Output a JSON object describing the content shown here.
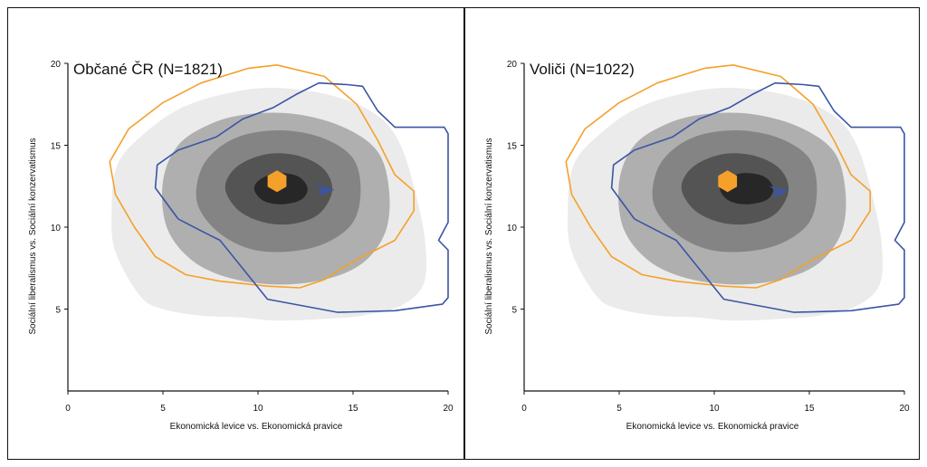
{
  "colors": {
    "orange": "#f5a02a",
    "blue": "#3a55a4",
    "band1": "#ebebeb",
    "band2": "#a9a9a9",
    "band3": "#7f7f7f",
    "band4": "#4f4f4f",
    "band5": "#222222"
  },
  "chart_data": [
    {
      "type": "contour",
      "title": "Občané ČR  (N=1821)",
      "xlabel": "Ekonomická levice vs. Ekonomická pravice",
      "ylabel": "Sociální liberalismus vs. Sociální konzervatismus",
      "xlim": [
        0,
        20
      ],
      "ylim": [
        0,
        20
      ],
      "xticks": [
        "0",
        "5",
        "10",
        "15",
        "20"
      ],
      "yticks": [
        "5",
        "10",
        "15",
        "20"
      ],
      "density_levels": [
        {
          "level": 1,
          "points": [
            [
              3.8,
              5.8
            ],
            [
              5,
              5
            ],
            [
              7,
              4.6
            ],
            [
              9,
              4.5
            ],
            [
              11,
              4.3
            ],
            [
              13.5,
              4.4
            ],
            [
              15.5,
              4.6
            ],
            [
              17.5,
              5.2
            ],
            [
              18.7,
              6.5
            ],
            [
              18.8,
              9
            ],
            [
              18.3,
              12
            ],
            [
              17.5,
              15
            ],
            [
              16.3,
              16.8
            ],
            [
              14,
              18
            ],
            [
              11,
              18.5
            ],
            [
              8.5,
              18.2
            ],
            [
              6,
              17.3
            ],
            [
              4,
              15.7
            ],
            [
              2.6,
              13.8
            ],
            [
              2.3,
              11
            ],
            [
              2.5,
              8.5
            ]
          ]
        },
        {
          "level": 2,
          "points": [
            [
              5.2,
              10
            ],
            [
              6.5,
              8
            ],
            [
              8.5,
              6.9
            ],
            [
              11,
              6.5
            ],
            [
              13.5,
              6.8
            ],
            [
              15.5,
              7.8
            ],
            [
              16.7,
              9.7
            ],
            [
              16.9,
              12.2
            ],
            [
              16.3,
              14.6
            ],
            [
              14.5,
              16.1
            ],
            [
              12,
              16.9
            ],
            [
              9.5,
              16.9
            ],
            [
              7.5,
              16.3
            ],
            [
              5.8,
              15
            ],
            [
              5,
              12.8
            ]
          ]
        },
        {
          "level": 3,
          "points": [
            [
              6.8,
              11.5
            ],
            [
              7.8,
              9.8
            ],
            [
              9.5,
              8.7
            ],
            [
              11.5,
              8.5
            ],
            [
              13.5,
              9
            ],
            [
              15,
              10.3
            ],
            [
              15.4,
              12.3
            ],
            [
              15,
              14.2
            ],
            [
              13.5,
              15.4
            ],
            [
              11.5,
              15.9
            ],
            [
              9.5,
              15.7
            ],
            [
              8,
              14.9
            ],
            [
              7,
              13.5
            ]
          ]
        },
        {
          "level": 4,
          "points": [
            [
              8.3,
              12.2
            ],
            [
              9,
              11
            ],
            [
              10.3,
              10.3
            ],
            [
              11.8,
              10.2
            ],
            [
              13.2,
              10.8
            ],
            [
              13.9,
              12.2
            ],
            [
              13.5,
              13.5
            ],
            [
              12.3,
              14.3
            ],
            [
              10.7,
              14.5
            ],
            [
              9.3,
              14
            ],
            [
              8.5,
              13.2
            ]
          ]
        },
        {
          "level": 5,
          "points": [
            [
              9.8,
              12.3
            ],
            [
              10.3,
              11.6
            ],
            [
              11.3,
              11.4
            ],
            [
              12.3,
              11.7
            ],
            [
              12.6,
              12.4
            ],
            [
              12.1,
              13.1
            ],
            [
              11,
              13.3
            ],
            [
              10.1,
              12.9
            ]
          ]
        }
      ],
      "series": [
        {
          "name": "orange contour",
          "color": "#f5a02a",
          "closed": true,
          "points": [
            [
              2.2,
              14
            ],
            [
              3.2,
              16
            ],
            [
              5,
              17.6
            ],
            [
              7,
              18.8
            ],
            [
              9.5,
              19.7
            ],
            [
              11,
              19.9
            ],
            [
              13.5,
              19.2
            ],
            [
              15.2,
              17.5
            ],
            [
              16.3,
              15.3
            ],
            [
              17.2,
              13.2
            ],
            [
              18.2,
              12.2
            ],
            [
              18.2,
              11
            ],
            [
              17.2,
              9.2
            ],
            [
              15.5,
              8.2
            ],
            [
              14.4,
              7.5
            ],
            [
              13.5,
              6.8
            ],
            [
              12.2,
              6.3
            ],
            [
              10.5,
              6.4
            ],
            [
              8,
              6.7
            ],
            [
              6.2,
              7.1
            ],
            [
              4.6,
              8.2
            ],
            [
              3.5,
              10
            ],
            [
              2.5,
              12
            ]
          ]
        },
        {
          "name": "blue contour",
          "color": "#3a55a4",
          "closed": false,
          "points": [
            [
              5.8,
              10.5
            ],
            [
              4.6,
              12.4
            ],
            [
              4.7,
              13.8
            ],
            [
              5.8,
              14.7
            ],
            [
              7.8,
              15.5
            ],
            [
              9.2,
              16.6
            ],
            [
              10.8,
              17.3
            ],
            [
              12,
              18.1
            ],
            [
              13.2,
              18.8
            ],
            [
              14.7,
              18.7
            ],
            [
              15.5,
              18.6
            ],
            [
              16.3,
              17.1
            ],
            [
              17.2,
              16.1
            ],
            [
              19.8,
              16.1
            ],
            [
              20,
              15.7
            ],
            [
              20,
              10.3
            ],
            [
              19.5,
              9.2
            ],
            [
              20,
              8.6
            ],
            [
              20,
              5.7
            ],
            [
              19.7,
              5.3
            ],
            [
              17.2,
              4.9
            ],
            [
              14.2,
              4.8
            ],
            [
              10.5,
              5.6
            ],
            [
              8,
              9.2
            ],
            [
              7.3,
              9.6
            ],
            [
              5.8,
              10.5
            ]
          ]
        }
      ],
      "markers": [
        {
          "name": "orange hexagon",
          "shape": "hexagon",
          "color": "#f5a02a",
          "x": 11.0,
          "y": 12.8
        },
        {
          "name": "blue arrowhead",
          "shape": "arrowhead",
          "color": "#3a55a4",
          "x": 13.5,
          "y": 12.3
        }
      ]
    },
    {
      "type": "contour",
      "title": "Voliči  (N=1022)",
      "xlabel": "Ekonomická levice vs. Ekonomická pravice",
      "ylabel": "Sociální liberalismus vs. Sociální konzervatismus",
      "xlim": [
        0,
        20
      ],
      "ylim": [
        0,
        20
      ],
      "xticks": [
        "0",
        "5",
        "10",
        "15",
        "20"
      ],
      "yticks": [
        "5",
        "10",
        "15",
        "20"
      ],
      "density_levels": [
        {
          "level": 1,
          "points": [
            [
              3.8,
              5.8
            ],
            [
              5,
              5
            ],
            [
              7,
              4.6
            ],
            [
              9,
              4.5
            ],
            [
              11,
              4.3
            ],
            [
              13.5,
              4.4
            ],
            [
              15.5,
              4.6
            ],
            [
              17.5,
              5.2
            ],
            [
              18.7,
              6.5
            ],
            [
              18.8,
              9
            ],
            [
              18.3,
              12
            ],
            [
              17.5,
              15
            ],
            [
              16.3,
              16.8
            ],
            [
              14,
              18
            ],
            [
              11,
              18.5
            ],
            [
              8.5,
              18.2
            ],
            [
              6,
              17.3
            ],
            [
              4,
              15.7
            ],
            [
              2.6,
              13.8
            ],
            [
              2.3,
              11
            ],
            [
              2.5,
              8.5
            ]
          ]
        },
        {
          "level": 2,
          "points": [
            [
              5.2,
              10
            ],
            [
              6.5,
              8
            ],
            [
              8.5,
              6.9
            ],
            [
              11,
              6.5
            ],
            [
              13.5,
              6.8
            ],
            [
              15.5,
              7.8
            ],
            [
              16.7,
              9.7
            ],
            [
              16.9,
              12.2
            ],
            [
              16.3,
              14.6
            ],
            [
              14.5,
              16.1
            ],
            [
              12,
              16.9
            ],
            [
              9.5,
              16.9
            ],
            [
              7.5,
              16.3
            ],
            [
              5.8,
              15
            ],
            [
              5,
              12.8
            ]
          ]
        },
        {
          "level": 3,
          "points": [
            [
              6.8,
              11.5
            ],
            [
              7.8,
              9.8
            ],
            [
              9.5,
              8.7
            ],
            [
              11.5,
              8.5
            ],
            [
              13.5,
              9
            ],
            [
              15,
              10.3
            ],
            [
              15.4,
              12.3
            ],
            [
              15,
              14.2
            ],
            [
              13.5,
              15.4
            ],
            [
              11.5,
              15.9
            ],
            [
              9.5,
              15.7
            ],
            [
              8,
              14.9
            ],
            [
              7,
              13.5
            ]
          ]
        },
        {
          "level": 4,
          "points": [
            [
              8.3,
              12.2
            ],
            [
              9,
              11
            ],
            [
              10.3,
              10.3
            ],
            [
              11.8,
              10.2
            ],
            [
              13.2,
              10.8
            ],
            [
              13.9,
              12.2
            ],
            [
              13.5,
              13.5
            ],
            [
              12.3,
              14.3
            ],
            [
              10.7,
              14.5
            ],
            [
              9.3,
              14
            ],
            [
              8.5,
              13.2
            ]
          ]
        },
        {
          "level": 5,
          "points": [
            [
              10.3,
              12.3
            ],
            [
              10.8,
              11.6
            ],
            [
              11.8,
              11.4
            ],
            [
              12.8,
              11.7
            ],
            [
              13.1,
              12.4
            ],
            [
              12.6,
              13.1
            ],
            [
              11.5,
              13.3
            ],
            [
              10.6,
              12.9
            ]
          ]
        }
      ],
      "series": [
        {
          "name": "orange contour",
          "color": "#f5a02a",
          "closed": true,
          "points": [
            [
              2.2,
              14
            ],
            [
              3.2,
              16
            ],
            [
              5,
              17.6
            ],
            [
              7,
              18.8
            ],
            [
              9.5,
              19.7
            ],
            [
              11,
              19.9
            ],
            [
              13.5,
              19.2
            ],
            [
              15.2,
              17.5
            ],
            [
              16.3,
              15.3
            ],
            [
              17.2,
              13.2
            ],
            [
              18.2,
              12.2
            ],
            [
              18.2,
              11
            ],
            [
              17.2,
              9.2
            ],
            [
              15.5,
              8.2
            ],
            [
              14.4,
              7.5
            ],
            [
              13.5,
              6.8
            ],
            [
              12.2,
              6.3
            ],
            [
              10.5,
              6.4
            ],
            [
              8,
              6.7
            ],
            [
              6.2,
              7.1
            ],
            [
              4.6,
              8.2
            ],
            [
              3.5,
              10
            ],
            [
              2.5,
              12
            ]
          ]
        },
        {
          "name": "blue contour",
          "color": "#3a55a4",
          "closed": false,
          "points": [
            [
              5.8,
              10.5
            ],
            [
              4.6,
              12.4
            ],
            [
              4.7,
              13.8
            ],
            [
              5.8,
              14.7
            ],
            [
              7.8,
              15.5
            ],
            [
              9.2,
              16.6
            ],
            [
              10.8,
              17.3
            ],
            [
              12,
              18.1
            ],
            [
              13.2,
              18.8
            ],
            [
              14.7,
              18.7
            ],
            [
              15.5,
              18.6
            ],
            [
              16.3,
              17.1
            ],
            [
              17.2,
              16.1
            ],
            [
              19.8,
              16.1
            ],
            [
              20,
              15.7
            ],
            [
              20,
              10.3
            ],
            [
              19.5,
              9.2
            ],
            [
              20,
              8.6
            ],
            [
              20,
              5.7
            ],
            [
              19.7,
              5.3
            ],
            [
              17.2,
              4.9
            ],
            [
              14.2,
              4.8
            ],
            [
              10.5,
              5.6
            ],
            [
              8,
              9.2
            ],
            [
              7.3,
              9.6
            ],
            [
              5.8,
              10.5
            ]
          ]
        }
      ],
      "markers": [
        {
          "name": "orange hexagon",
          "shape": "hexagon",
          "color": "#f5a02a",
          "x": 10.7,
          "y": 12.8
        },
        {
          "name": "blue arrowhead",
          "shape": "arrowhead",
          "color": "#3a55a4",
          "x": 13.4,
          "y": 12.2
        }
      ]
    }
  ]
}
